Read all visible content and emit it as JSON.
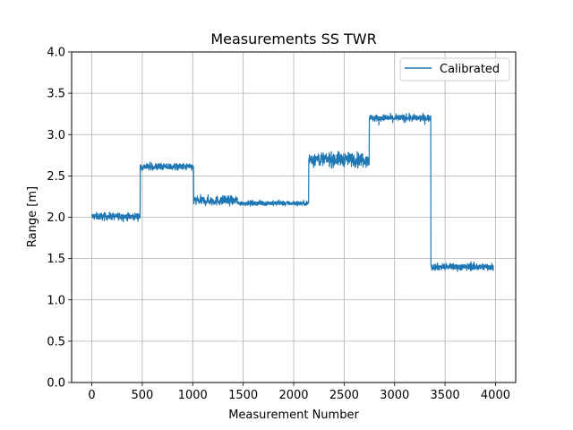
{
  "chart_data": {
    "type": "line",
    "title": "Measurements SS TWR",
    "xlabel": "Measurement Number",
    "ylabel": "Range [m]",
    "xlim": [
      -200,
      4200
    ],
    "ylim": [
      0.0,
      4.0
    ],
    "xticks": [
      0,
      500,
      1000,
      1500,
      2000,
      2500,
      3000,
      3500,
      4000
    ],
    "xtick_labels": [
      "0",
      "500",
      "1000",
      "1500",
      "2000",
      "2500",
      "3000",
      "3500",
      "4000"
    ],
    "yticks": [
      0.0,
      0.5,
      1.0,
      1.5,
      2.0,
      2.5,
      3.0,
      3.5,
      4.0
    ],
    "ytick_labels": [
      "0.0",
      "0.5",
      "1.0",
      "1.5",
      "2.0",
      "2.5",
      "3.0",
      "3.5",
      "4.0"
    ],
    "grid": true,
    "legend_position": "top-right",
    "series": [
      {
        "name": "Calibrated",
        "color": "#1f77b4",
        "segments": [
          {
            "x_start": 0,
            "x_end": 480,
            "level": 2.01,
            "noise": 0.03
          },
          {
            "x_start": 480,
            "x_end": 1010,
            "level": 2.61,
            "noise": 0.03
          },
          {
            "x_start": 1010,
            "x_end": 1450,
            "level": 2.2,
            "noise": 0.04
          },
          {
            "x_start": 1450,
            "x_end": 2150,
            "level": 2.17,
            "noise": 0.02
          },
          {
            "x_start": 2150,
            "x_end": 2750,
            "level": 2.7,
            "noise": 0.06
          },
          {
            "x_start": 2750,
            "x_end": 3360,
            "level": 3.2,
            "noise": 0.03
          },
          {
            "x_start": 3360,
            "x_end": 3980,
            "level": 1.4,
            "noise": 0.03
          }
        ]
      }
    ]
  }
}
